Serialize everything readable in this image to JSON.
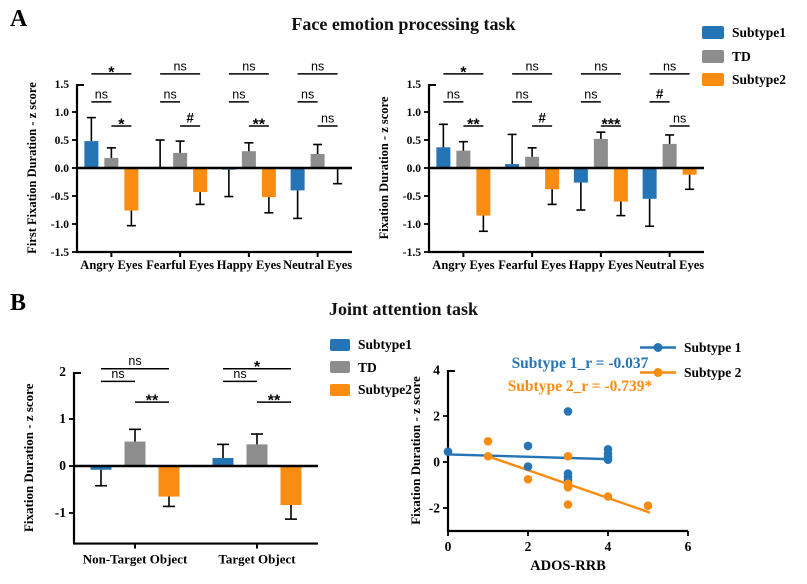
{
  "colors": {
    "subtype1": "#2575b6",
    "td": "#8d8d8d",
    "subtype2": "#fa8c11"
  },
  "panel_a": {
    "label": "A",
    "title": "Face emotion processing task",
    "legend": [
      {
        "label": "Subtype1",
        "color": "#2575b6"
      },
      {
        "label": "TD",
        "color": "#8d8d8d"
      },
      {
        "label": "Subtype2",
        "color": "#fa8c11"
      }
    ],
    "charts": [
      {
        "type": "bar",
        "ylabel": "First Fixation Duration - z score",
        "categories": [
          "Angry Eyes",
          "Fearful Eyes",
          "Happy Eyes",
          "Neutral Eyes"
        ],
        "ylim": [
          -1.5,
          1.5
        ],
        "yticks": [
          "1.5",
          "1.0",
          "0.5",
          "0.0",
          "-0.5",
          "-1.0",
          "-1.5"
        ],
        "series": [
          {
            "name": "Subtype1",
            "color": "#2575b6",
            "values": [
              0.48,
              0.02,
              -0.03,
              -0.4
            ],
            "errors": [
              0.42,
              0.48,
              0.48,
              0.5
            ]
          },
          {
            "name": "TD",
            "color": "#8d8d8d",
            "values": [
              0.18,
              0.27,
              0.3,
              0.25
            ],
            "errors": [
              0.18,
              0.21,
              0.15,
              0.17
            ]
          },
          {
            "name": "Subtype2",
            "color": "#fa8c11",
            "values": [
              -0.76,
              -0.43,
              -0.52,
              -0.02
            ],
            "errors": [
              0.27,
              0.22,
              0.28,
              0.26
            ]
          }
        ],
        "significance": [
          {
            "s1_td": "ns",
            "s1_s2": "*",
            "td_s2": "*"
          },
          {
            "s1_td": "ns",
            "s1_s2": "ns",
            "td_s2": "#"
          },
          {
            "s1_td": "ns",
            "s1_s2": "ns",
            "td_s2": "**"
          },
          {
            "s1_td": "ns",
            "s1_s2": "ns",
            "td_s2": "ns"
          }
        ]
      },
      {
        "type": "bar",
        "ylabel": "Fixation Duration - z score",
        "categories": [
          "Angry Eyes",
          "Fearful Eyes",
          "Happy Eyes",
          "Neutral Eyes"
        ],
        "ylim": [
          -1.5,
          1.5
        ],
        "yticks": [
          "1.5",
          "1.0",
          "0.5",
          "0.0",
          "-0.5",
          "-1.0",
          "-1.5"
        ],
        "series": [
          {
            "name": "Subtype1",
            "color": "#2575b6",
            "values": [
              0.37,
              0.07,
              -0.26,
              -0.55
            ],
            "errors": [
              0.41,
              0.53,
              0.49,
              0.49
            ]
          },
          {
            "name": "TD",
            "color": "#8d8d8d",
            "values": [
              0.31,
              0.2,
              0.52,
              0.43
            ],
            "errors": [
              0.16,
              0.16,
              0.12,
              0.16
            ]
          },
          {
            "name": "Subtype2",
            "color": "#fa8c11",
            "values": [
              -0.85,
              -0.38,
              -0.6,
              -0.12
            ],
            "errors": [
              0.28,
              0.27,
              0.25,
              0.26
            ]
          }
        ],
        "significance": [
          {
            "s1_td": "ns",
            "s1_s2": "*",
            "td_s2": "**"
          },
          {
            "s1_td": "ns",
            "s1_s2": "ns",
            "td_s2": "#"
          },
          {
            "s1_td": "ns",
            "s1_s2": "ns",
            "td_s2": "***"
          },
          {
            "s1_td": "#",
            "s1_s2": "ns",
            "td_s2": "ns"
          }
        ]
      }
    ]
  },
  "panel_b": {
    "label": "B",
    "title": "Joint attention task",
    "legend": [
      {
        "label": "Subtype1",
        "color": "#2575b6"
      },
      {
        "label": "TD",
        "color": "#8d8d8d"
      },
      {
        "label": "Subtype2",
        "color": "#fa8c11"
      }
    ],
    "bar_chart": {
      "type": "bar",
      "ylabel": "Fixation Duration - z score",
      "categories": [
        "Non-Target Object",
        "Target Object"
      ],
      "ylim": [
        -1.65,
        2
      ],
      "yticks": [
        "2",
        "1",
        "0",
        "-1"
      ],
      "series": [
        {
          "name": "Subtype1",
          "color": "#2575b6",
          "values": [
            -0.08,
            0.17
          ],
          "errors": [
            0.34,
            0.29
          ]
        },
        {
          "name": "TD",
          "color": "#8d8d8d",
          "values": [
            0.52,
            0.46
          ],
          "errors": [
            0.26,
            0.22
          ]
        },
        {
          "name": "Subtype2",
          "color": "#fa8c11",
          "values": [
            -0.65,
            -0.83
          ],
          "errors": [
            0.21,
            0.3
          ]
        }
      ],
      "significance": [
        {
          "s1_td": "ns",
          "s1_s2": "ns",
          "td_s2": "**"
        },
        {
          "s1_td": "ns",
          "s1_s2": "*",
          "td_s2": "**"
        }
      ]
    },
    "scatter": {
      "type": "scatter",
      "xlabel": "ADOS-RRB",
      "ylabel": "Fixation Duration - z score",
      "xlim": [
        0,
        6
      ],
      "xticks": [
        "0",
        "2",
        "4",
        "6"
      ],
      "ylim": [
        -3,
        4
      ],
      "yticks": [
        "4",
        "2",
        "0",
        "-2"
      ],
      "annotations": [
        {
          "text": "Subtype 1_r = -0.037",
          "color": "#2575b6"
        },
        {
          "text": "Subtype 2_r = -0.739*",
          "color": "#fa8c11"
        }
      ],
      "legend": [
        {
          "label": "Subtype 1",
          "color": "#2575b6"
        },
        {
          "label": "Subtype 2",
          "color": "#fa8c11"
        }
      ],
      "series": [
        {
          "name": "Subtype 1",
          "color": "#2575b6",
          "points": [
            [
              0,
              0.45
            ],
            [
              2,
              0.7
            ],
            [
              2,
              -0.2
            ],
            [
              3,
              2.2
            ],
            [
              3,
              -0.5
            ],
            [
              3,
              -0.65
            ],
            [
              3,
              -0.8
            ],
            [
              4,
              0.55
            ],
            [
              4,
              0.35
            ],
            [
              4,
              0.2
            ],
            [
              4,
              0.1
            ]
          ],
          "trend": [
            [
              0,
              0.33
            ],
            [
              4.1,
              0.12
            ]
          ]
        },
        {
          "name": "Subtype 2",
          "color": "#fa8c11",
          "points": [
            [
              1,
              0.9
            ],
            [
              1,
              0.25
            ],
            [
              2,
              -0.75
            ],
            [
              3,
              0.25
            ],
            [
              3,
              -0.95
            ],
            [
              3,
              -1.1
            ],
            [
              3,
              -1.85
            ],
            [
              4,
              -1.5
            ],
            [
              5,
              -1.9
            ]
          ],
          "trend": [
            [
              1,
              0.25
            ],
            [
              5.05,
              -2.2
            ]
          ]
        }
      ]
    }
  }
}
